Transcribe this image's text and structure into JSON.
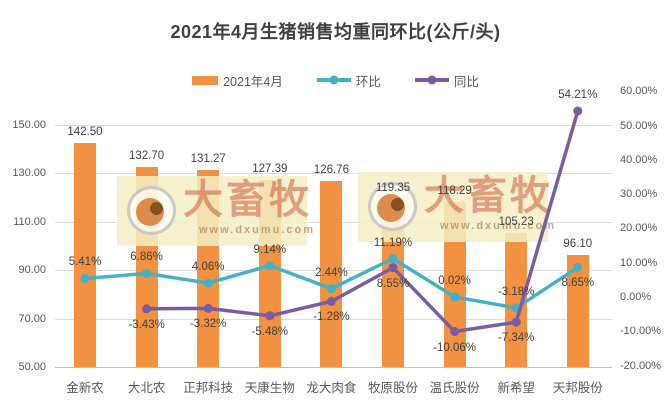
{
  "title": "2021年4月生猪销售均重同环比(公斤/头)",
  "legend": {
    "items": [
      {
        "label": "2021年4月",
        "marker": "bar-swatch",
        "color": "#F2913F"
      },
      {
        "label": "环比",
        "marker": "line-dot",
        "color": "#45B1C6"
      },
      {
        "label": "同比",
        "marker": "line-dot",
        "color": "#7A5CA6"
      }
    ]
  },
  "watermark": {
    "brand": "大畜牧",
    "url": "www.dxumu.com"
  },
  "chart_data": {
    "type": "combo-bar-line",
    "title": "2021年4月生猪销售均重同环比(公斤/头)",
    "xlabel": "",
    "ylabel_left": "",
    "ylabel_right": "",
    "legend_position": "top",
    "grid": "horizontal gridlines on left-axis ticks",
    "categories": [
      "金新农",
      "大北农",
      "正邦科技",
      "天康生物",
      "龙大肉食",
      "牧原股份",
      "温氏股份",
      "新希望",
      "天邦股份"
    ],
    "series": [
      {
        "name": "2021年4月",
        "type": "bar",
        "axis": "left",
        "color": "#F2913F",
        "values": [
          142.5,
          132.7,
          131.27,
          127.39,
          126.76,
          119.35,
          118.29,
          105.23,
          96.1
        ],
        "labels": [
          "142.50",
          "132.70",
          "131.27",
          "127.39",
          "126.76",
          "119.35",
          "118.29",
          "105.23",
          "96.10"
        ]
      },
      {
        "name": "环比",
        "type": "line",
        "axis": "right",
        "color": "#45B1C6",
        "values": [
          5.41,
          6.86,
          4.06,
          9.14,
          2.44,
          11.19,
          0.02,
          -3.18,
          8.65
        ],
        "labels": [
          "5.41%",
          "6.86%",
          "4.06%",
          "9.14%",
          "2.44%",
          "11.19%",
          "0.02%",
          "-3.18%",
          "8.65%"
        ],
        "label_side": [
          "above",
          "above",
          "above",
          "above",
          "above",
          "above",
          "above",
          "above",
          "below"
        ]
      },
      {
        "name": "同比",
        "type": "line",
        "axis": "right",
        "color": "#7A5CA6",
        "values": [
          null,
          -3.43,
          -3.32,
          -5.48,
          -1.28,
          8.55,
          -10.06,
          -7.34,
          54.21
        ],
        "labels": [
          null,
          "-3.43%",
          "-3.32%",
          "-5.48%",
          "-1.28%",
          "8.55%",
          "-10.06%",
          "-7.34%",
          "54.21%"
        ],
        "label_side": [
          null,
          "below",
          "below",
          "below",
          "below",
          "below",
          "below",
          "below",
          "above"
        ]
      }
    ],
    "left_axis": {
      "min": 50,
      "max": 150,
      "tick_step": 20,
      "tick_values": [
        150,
        130,
        110,
        90,
        70,
        50
      ],
      "tick_labels": [
        "150.00",
        "130.00",
        "110.00",
        "90.00",
        "70.00",
        "50.00"
      ]
    },
    "right_axis": {
      "min": -20,
      "max": 60,
      "tick_step": 10,
      "tick_values": [
        60,
        50,
        40,
        30,
        20,
        10,
        0,
        -10,
        -20
      ],
      "tick_labels": [
        "60.00%",
        "50.00%",
        "40.00%",
        "30.00%",
        "20.00%",
        "10.00%",
        "0.00%",
        "-10.00%",
        "-20.00%"
      ]
    }
  }
}
